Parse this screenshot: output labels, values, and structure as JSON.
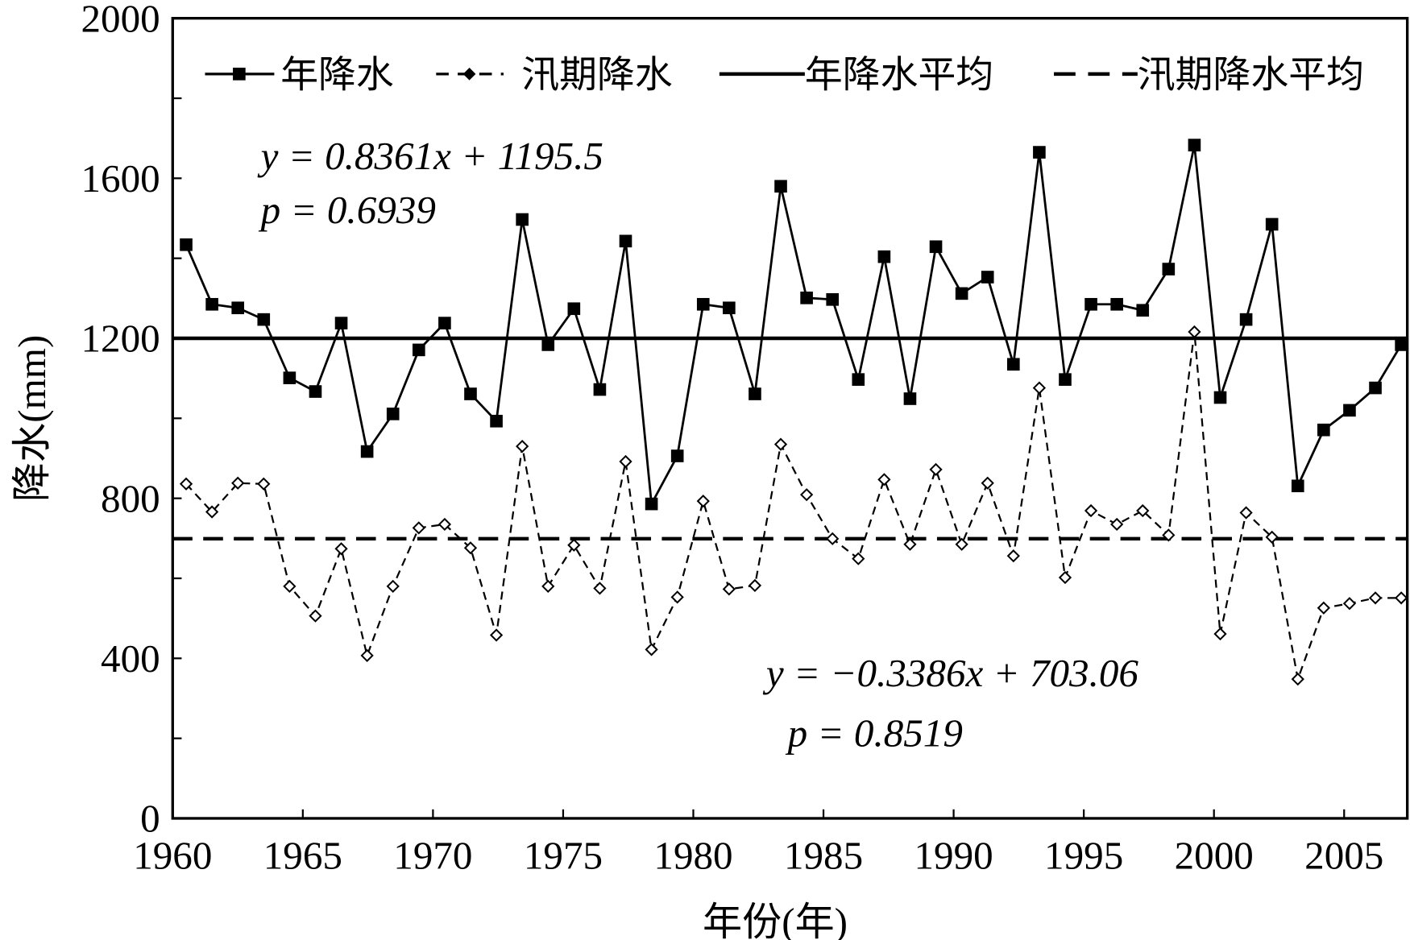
{
  "chart_data": {
    "type": "line",
    "title": "",
    "xlabel": "年份(年)",
    "ylabel": "降水(mm)",
    "ylim": [
      0,
      2000
    ],
    "yticks": [
      0,
      400,
      800,
      1200,
      1600,
      2000
    ],
    "xticks": [
      "1960",
      "1965",
      "1970",
      "1975",
      "1980",
      "1985",
      "1990",
      "1995",
      "2000",
      "2005"
    ],
    "grid": false,
    "legend_position": "top",
    "x": [
      1961,
      1962,
      1963,
      1964,
      1965,
      1966,
      1967,
      1968,
      1969,
      1970,
      1971,
      1972,
      1973,
      1974,
      1975,
      1976,
      1977,
      1978,
      1979,
      1980,
      1981,
      1982,
      1983,
      1984,
      1985,
      1986,
      1987,
      1988,
      1989,
      1990,
      1991,
      1992,
      1993,
      1994,
      1995,
      1996,
      1997,
      1998,
      1999,
      2000,
      2001,
      2002,
      2003,
      2004,
      2005,
      2006,
      2007,
      2008
    ],
    "series": [
      {
        "name": "年降水",
        "style": "solid-square",
        "values": [
          1434,
          1285,
          1276,
          1247,
          1101,
          1067,
          1238,
          917,
          1011,
          1171,
          1238,
          1061,
          993,
          1497,
          1184,
          1274,
          1072,
          1443,
          786,
          906,
          1285,
          1276,
          1061,
          1580,
          1301,
          1297,
          1097,
          1404,
          1049,
          1429,
          1312,
          1353,
          1135,
          1665,
          1097,
          1285,
          1285,
          1270,
          1373,
          1683,
          1052,
          1247,
          1485,
          831,
          971,
          1020,
          1076,
          1184
        ]
      },
      {
        "name": "汛期降水",
        "style": "dashed-diamond",
        "values": [
          836,
          766,
          838,
          836,
          580,
          506,
          674,
          407,
          580,
          726,
          735,
          676,
          458,
          930,
          580,
          683,
          575,
          892,
          422,
          553,
          793,
          573,
          582,
          935,
          809,
          699,
          649,
          847,
          685,
          872,
          685,
          838,
          656,
          1076,
          602,
          769,
          735,
          769,
          708,
          1216,
          461,
          764,
          703,
          348,
          526,
          537,
          551,
          551
        ]
      },
      {
        "name": "年降水平均",
        "style": "solid-line",
        "value": 1200
      },
      {
        "name": "汛期降水平均",
        "style": "dashed-line",
        "value": 699
      }
    ],
    "annotations": [
      {
        "series": "年降水",
        "equation": "y = 0.8361x + 1195.5",
        "p": "p = 0.6939"
      },
      {
        "series": "汛期降水",
        "equation": "y = −0.3386x + 703.06",
        "p": "p = 0.8519"
      }
    ]
  }
}
